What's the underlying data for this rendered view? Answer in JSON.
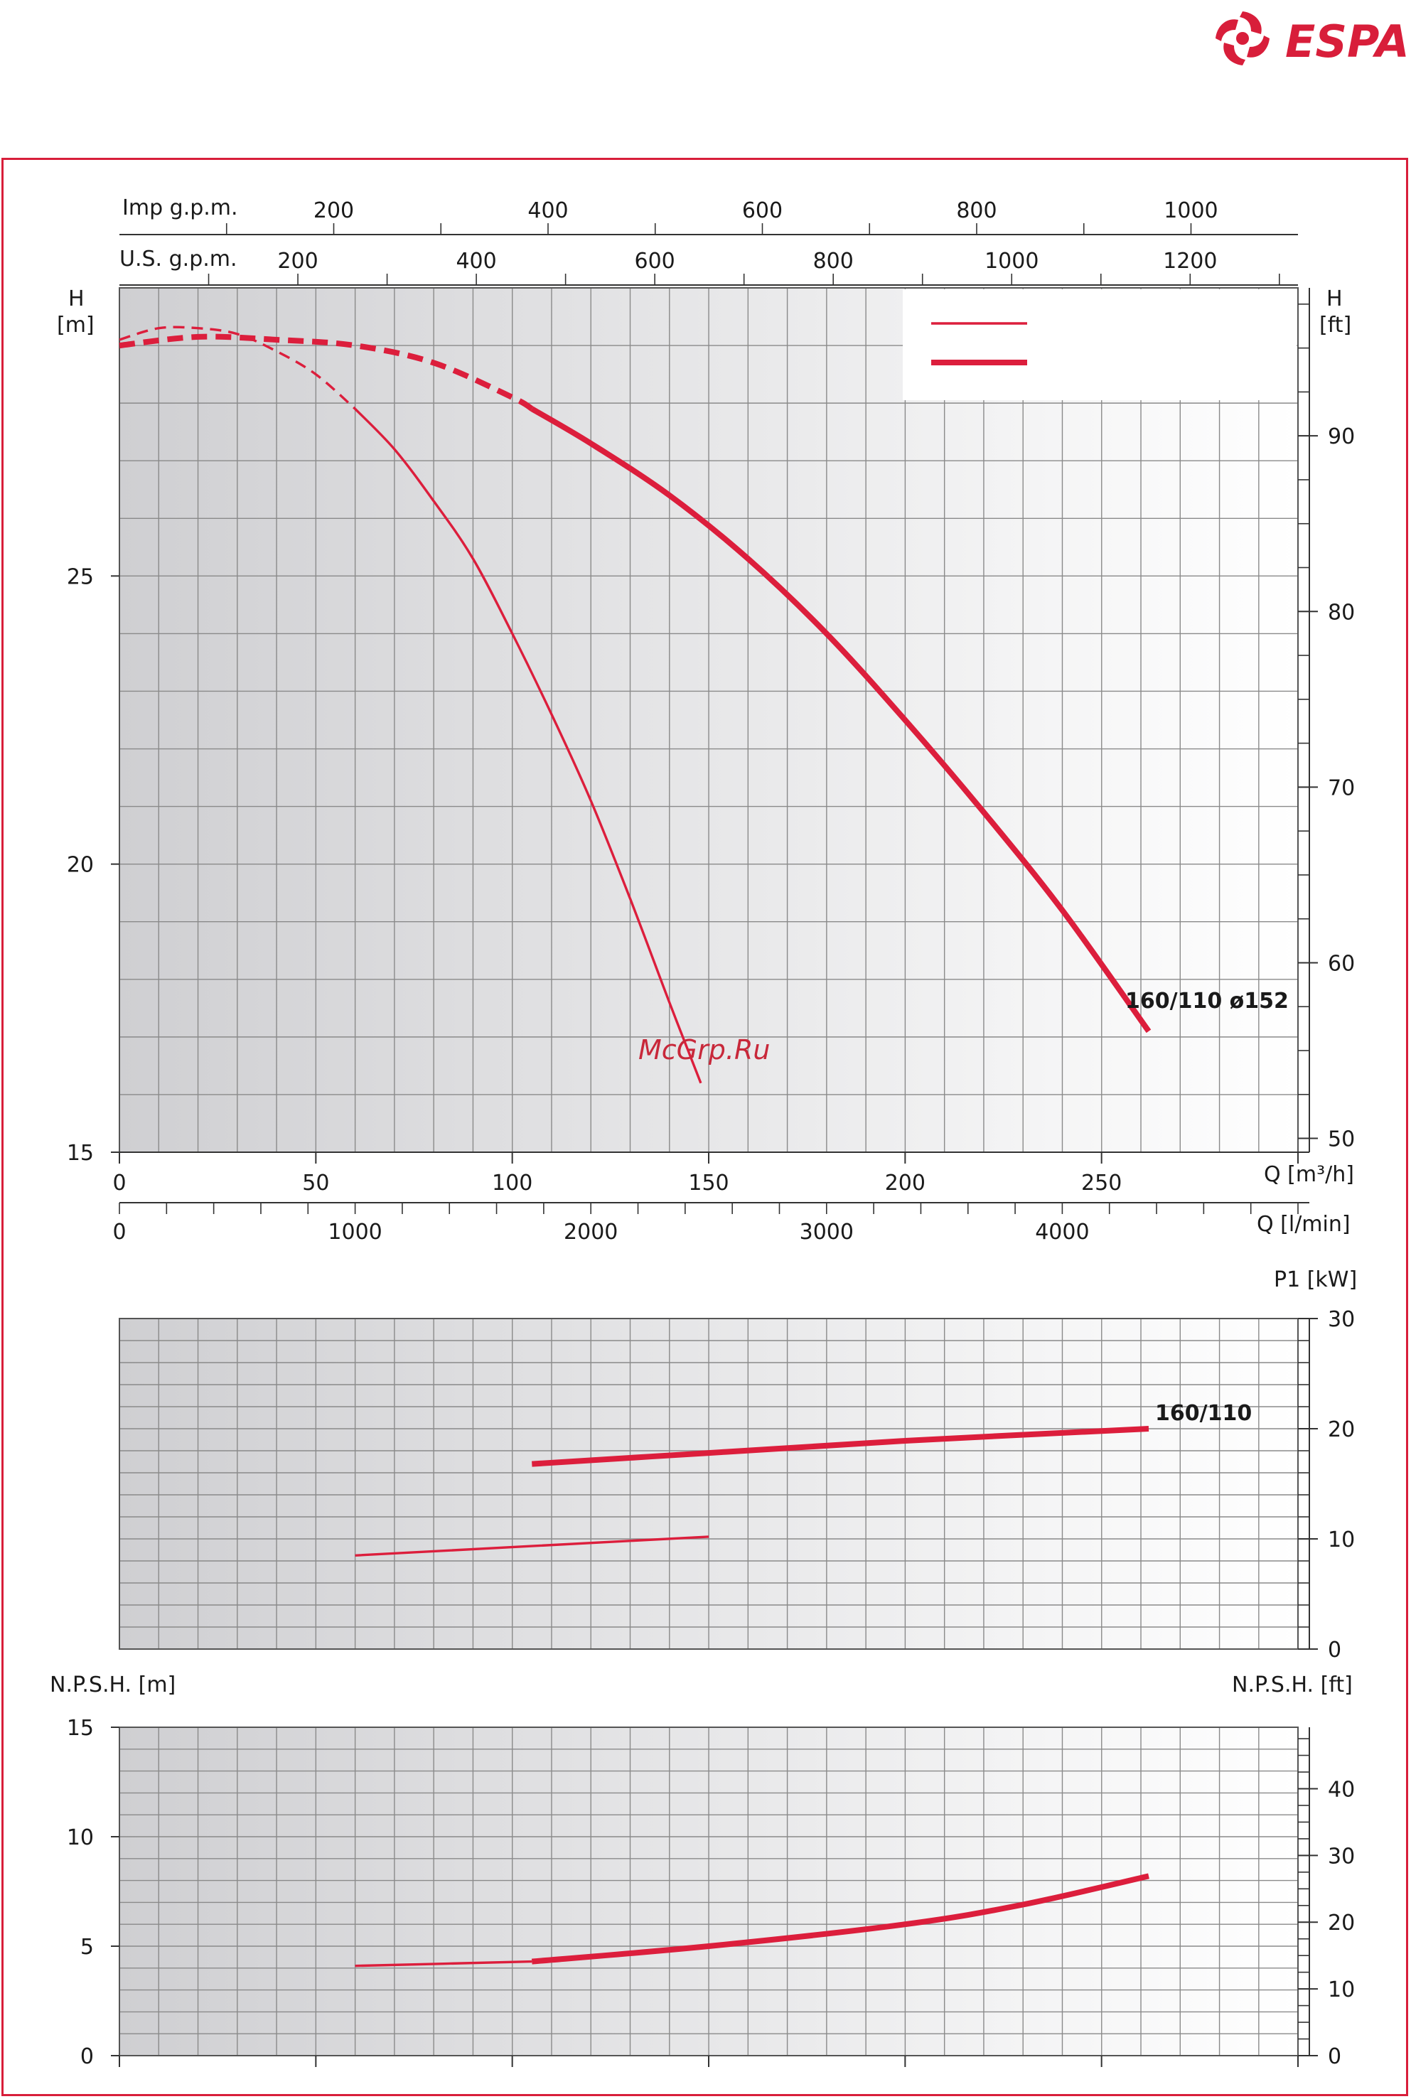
{
  "brand": {
    "name": "ESPA",
    "color": "#d81e3a",
    "icon": "swirl-icon"
  },
  "watermark": "McGrp.Ru",
  "colors": {
    "curve": "#dc1e3c",
    "frame": "#d81e3a",
    "grid": "#8a8a8a"
  },
  "chart_data": [
    {
      "id": "head",
      "type": "line",
      "xlabel": "Q [m³/h]",
      "xlabel_secondary": "Q [l/min]",
      "xlabel_top1": "Imp g.p.m.",
      "xlabel_top2": "U.S. g.p.m.",
      "ylabel_left": [
        "H",
        "[m]"
      ],
      "ylabel_right": [
        "H",
        "[ft]"
      ],
      "xlim": [
        0,
        300
      ],
      "ylim": [
        15,
        30
      ],
      "x_ticks": [
        0,
        50,
        100,
        150,
        200,
        250
      ],
      "y_ticks": [
        15,
        20,
        25
      ],
      "y_ticks_right": [
        50,
        60,
        70,
        80,
        90
      ],
      "lmin_ticks": [
        0,
        1000,
        2000,
        3000,
        4000
      ],
      "impgpm_ticks": [
        200,
        400,
        600,
        800,
        1000
      ],
      "usgpm_ticks": [
        200,
        400,
        600,
        800,
        1000,
        1200
      ],
      "label": "160/110  ø152",
      "series": [
        {
          "style": "thin",
          "dashed_until": 60,
          "x": [
            0,
            10,
            20,
            30,
            40,
            50,
            60,
            70,
            80,
            90,
            100,
            110,
            120,
            130,
            140,
            148
          ],
          "y": [
            29.1,
            29.3,
            29.3,
            29.2,
            28.9,
            28.5,
            27.9,
            27.2,
            26.3,
            25.3,
            24.0,
            22.6,
            21.1,
            19.4,
            17.6,
            16.2
          ]
        },
        {
          "style": "thick",
          "dashed_until": 105,
          "x": [
            0,
            20,
            40,
            60,
            80,
            100,
            105,
            120,
            140,
            160,
            180,
            200,
            220,
            240,
            262
          ],
          "y": [
            29.0,
            29.15,
            29.1,
            29.0,
            28.7,
            28.1,
            27.9,
            27.3,
            26.4,
            25.3,
            24.0,
            22.5,
            20.9,
            19.2,
            17.1
          ]
        }
      ]
    },
    {
      "id": "power",
      "type": "line",
      "ylabel_right": "P1 [kW]",
      "xlim": [
        0,
        300
      ],
      "ylim": [
        0,
        30
      ],
      "y_ticks_right": [
        0,
        10,
        20,
        30
      ],
      "label": "160/110",
      "series": [
        {
          "style": "thin",
          "x": [
            60,
            150
          ],
          "y": [
            8.5,
            10.2
          ]
        },
        {
          "style": "thick",
          "x": [
            105,
            150,
            200,
            262
          ],
          "y": [
            16.8,
            17.8,
            18.9,
            20.0
          ]
        }
      ]
    },
    {
      "id": "npsh",
      "type": "line",
      "ylabel_left": "N.P.S.H. [m]",
      "ylabel_right": "N.P.S.H. [ft]",
      "xlim": [
        0,
        300
      ],
      "ylim": [
        0,
        15
      ],
      "y_ticks_left": [
        0,
        5,
        10,
        15
      ],
      "y_ticks_right": [
        0,
        10,
        20,
        30,
        40
      ],
      "series": [
        {
          "style": "thin",
          "x": [
            60,
            105
          ],
          "y": [
            4.1,
            4.3
          ]
        },
        {
          "style": "thick",
          "x": [
            105,
            150,
            200,
            230,
            262
          ],
          "y": [
            4.3,
            5.0,
            6.0,
            6.9,
            8.2
          ]
        }
      ]
    }
  ]
}
